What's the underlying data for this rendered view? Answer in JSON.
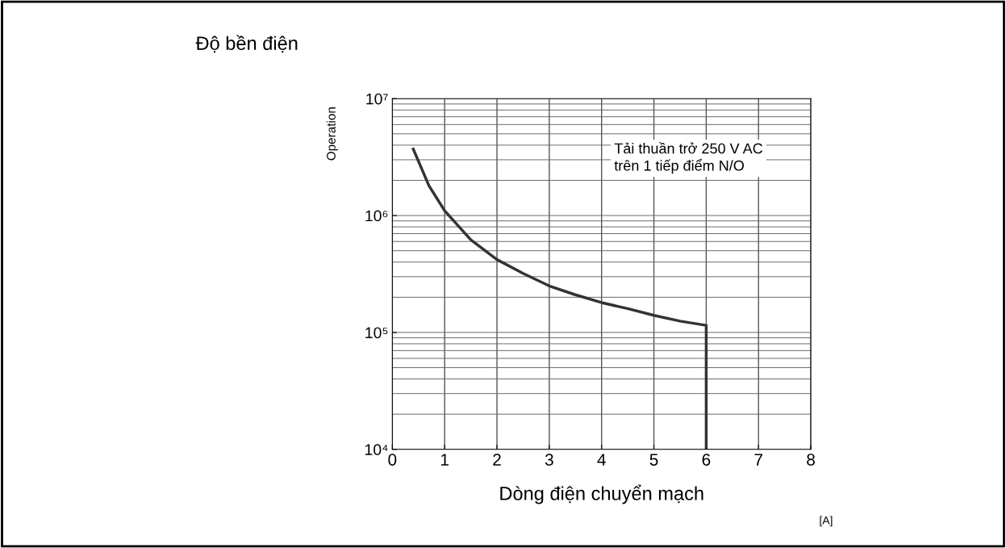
{
  "chart_data": {
    "type": "line",
    "title": "Độ bền điện",
    "xlabel": "Dòng điện chuyển mạch",
    "ylabel": "Operation",
    "annotations": [
      "Tải thuần trở 250 V AC\ntrên 1 tiếp điểm N/O",
      "[A]"
    ],
    "x": [
      0.4,
      0.7,
      1,
      1.5,
      2,
      2.5,
      3,
      3.5,
      4,
      4.5,
      5,
      5.5,
      6,
      6
    ],
    "series": [
      {
        "color": "#333333",
        "values": [
          3700000,
          1800000,
          1100000,
          620000,
          420000,
          320000,
          250000,
          210000,
          180000,
          160000,
          140000,
          125000,
          115000,
          10000
        ]
      }
    ],
    "log": true,
    "xlim": [
      0,
      8
    ],
    "xticks": [
      0,
      1,
      2,
      3,
      4,
      5,
      6,
      7,
      8
    ],
    "ylim": [
      10000,
      10000000
    ],
    "yticks": [
      {
        "value": 10000,
        "label": "10⁴"
      },
      {
        "value": 100000,
        "label": "10⁵"
      },
      {
        "value": 1000000,
        "label": "10⁶"
      },
      {
        "value": 10000000,
        "label": "10⁷"
      }
    ],
    "grid": true,
    "marker": "none",
    "line_style": "solid",
    "legend": false
  }
}
